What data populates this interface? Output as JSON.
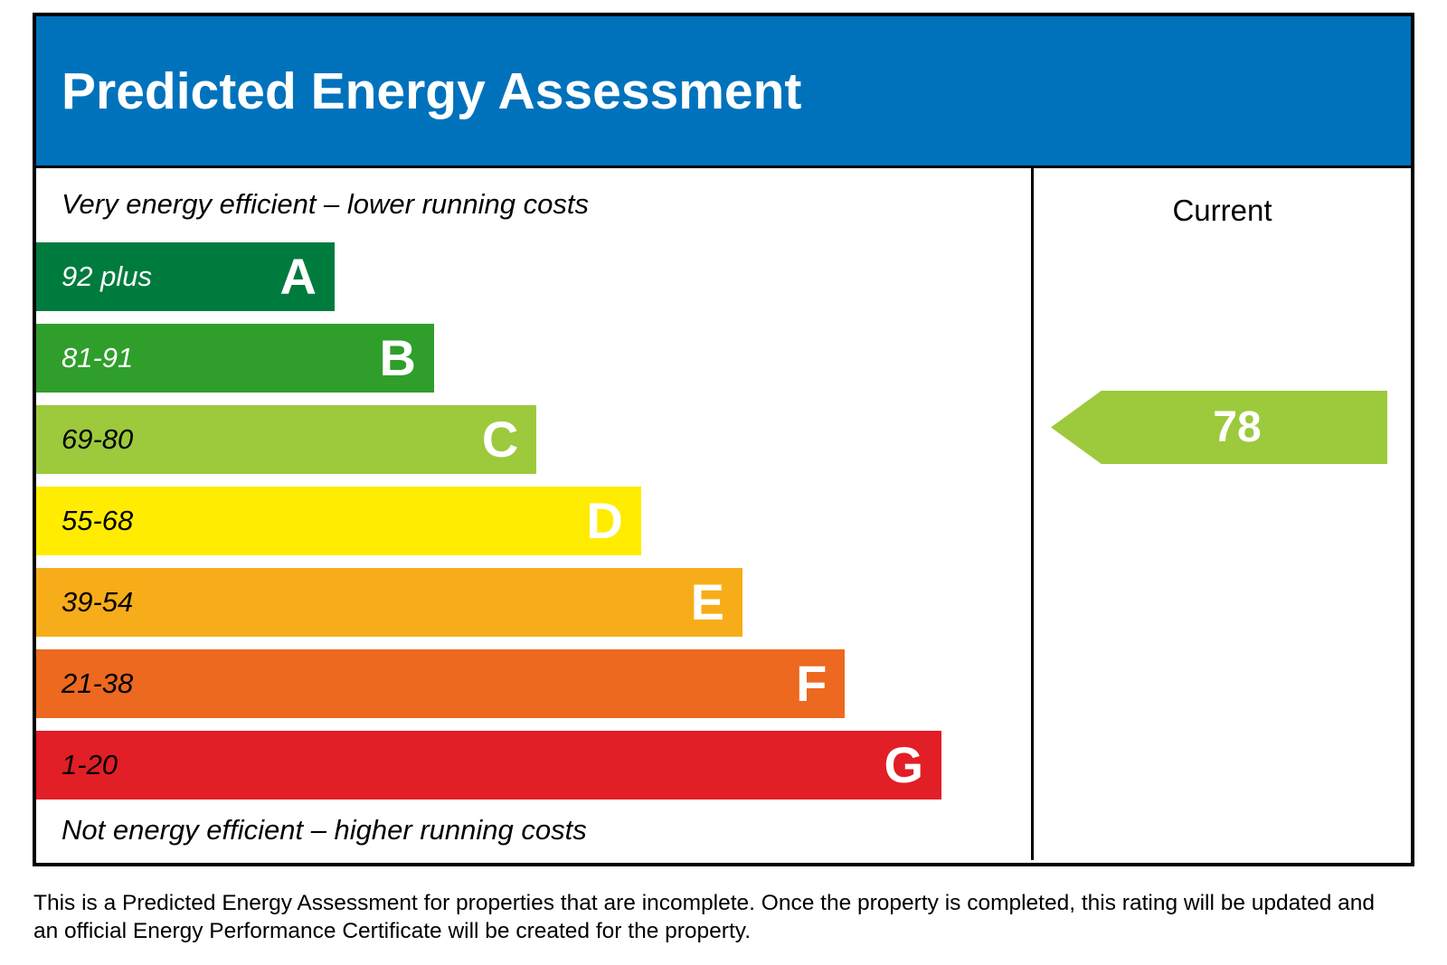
{
  "title": "Predicted Energy Assessment",
  "top_note": "Very energy efficient – lower running costs",
  "bottom_note": "Not energy efficient – higher running costs",
  "current_label": "Current",
  "footer": "This is a Predicted Energy Assessment for properties that are incomplete. Once the property is completed, this rating will be updated and an official Energy Performance Certificate will be created for the property.",
  "colors": {
    "header_background": "#0072bc",
    "border": "#000000",
    "arrow": "#9dc93c"
  },
  "chart_data": {
    "type": "bar",
    "title": "Predicted Energy Assessment",
    "x_axis_hidden": true,
    "legend": "none",
    "bands": [
      {
        "letter": "A",
        "range": "92 plus",
        "color": "#007b3e",
        "width_pct": 30,
        "range_text_color": "#ffffff"
      },
      {
        "letter": "B",
        "range": "81-91",
        "color": "#2f9e2b",
        "width_pct": 40,
        "range_text_color": "#ffffff"
      },
      {
        "letter": "C",
        "range": "69-80",
        "color": "#9dc93c",
        "width_pct": 50.3,
        "range_text_color": "#000000"
      },
      {
        "letter": "D",
        "range": "55-68",
        "color": "#ffec00",
        "width_pct": 60.8,
        "range_text_color": "#000000"
      },
      {
        "letter": "E",
        "range": "39-54",
        "color": "#f7ad19",
        "width_pct": 71,
        "range_text_color": "#000000"
      },
      {
        "letter": "F",
        "range": "21-38",
        "color": "#ec691f",
        "width_pct": 81.3,
        "range_text_color": "#000000"
      },
      {
        "letter": "G",
        "range": "1-20",
        "color": "#e21e26",
        "width_pct": 91,
        "range_text_color": "#000000"
      }
    ],
    "current": {
      "value": "78",
      "band": "C",
      "arrow_color": "#9dc93c",
      "arrow_direction": "left"
    }
  }
}
